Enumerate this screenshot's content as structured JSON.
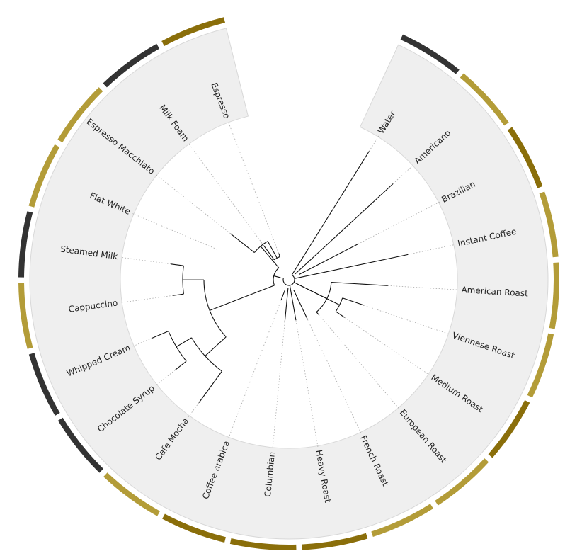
{
  "diagram": {
    "type": "circular-dendrogram",
    "colors": {
      "wedge_fill": "#efefef",
      "wedge_stroke": "#d8d8d8",
      "branch": "#111111",
      "guide": "#aaaaaa",
      "text": "#222222",
      "ring_dark": "#333333",
      "ring_gold": "#b39c38",
      "ring_brown": "#8a6e0a"
    },
    "leaves": [
      "Water",
      "Americano",
      "Brazilian",
      "Instant Coffee",
      "American Roast",
      "Viennese Roast",
      "Medium Roast",
      "European Roast",
      "French Roast",
      "Heavy Roast",
      "Columbian",
      "Coffee arabica",
      "Cafe Mocha",
      "Chocolate Syrup",
      "Whipped Cream",
      "Cappuccino",
      "Steamed Milk",
      "Flat White",
      "Espresso Macchiato",
      "Milk Foam",
      "Espresso"
    ],
    "leaf_groups": [
      "dark",
      "gold",
      "brown",
      "gold",
      "gold",
      "gold",
      "brown",
      "gold",
      "gold",
      "brown",
      "brown",
      "brown",
      "gold",
      "dark",
      "dark",
      "gold",
      "dark",
      "gold",
      "gold",
      "dark",
      "brown"
    ]
  }
}
